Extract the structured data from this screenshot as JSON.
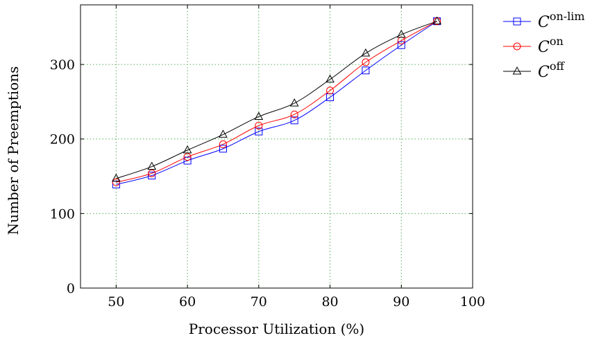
{
  "chart_data": {
    "type": "line",
    "title": "",
    "xlabel": "Processor Utilization (%)",
    "ylabel": "Number of Preemptions",
    "xlim": [
      45,
      100
    ],
    "ylim": [
      0,
      380
    ],
    "xticks": [
      50,
      60,
      70,
      80,
      90,
      100
    ],
    "yticks": [
      0,
      100,
      200,
      300
    ],
    "grid": true,
    "legend_position": "outside-top-right",
    "x": [
      50,
      55,
      60,
      65,
      70,
      75,
      80,
      85,
      90,
      95
    ],
    "series": [
      {
        "name": "C",
        "sup": "on-lim",
        "color": "#0000ff",
        "marker": "square",
        "values": [
          139,
          151,
          171,
          187,
          210,
          225,
          256,
          292,
          326,
          358
        ]
      },
      {
        "name": "C",
        "sup": "on",
        "color": "#ff0000",
        "marker": "circle",
        "values": [
          142,
          154,
          176,
          193,
          218,
          233,
          265,
          303,
          332,
          358
        ]
      },
      {
        "name": "C",
        "sup": "off",
        "color": "#000000",
        "marker": "triangle",
        "values": [
          147,
          163,
          185,
          206,
          230,
          248,
          280,
          315,
          340,
          358
        ]
      }
    ]
  }
}
